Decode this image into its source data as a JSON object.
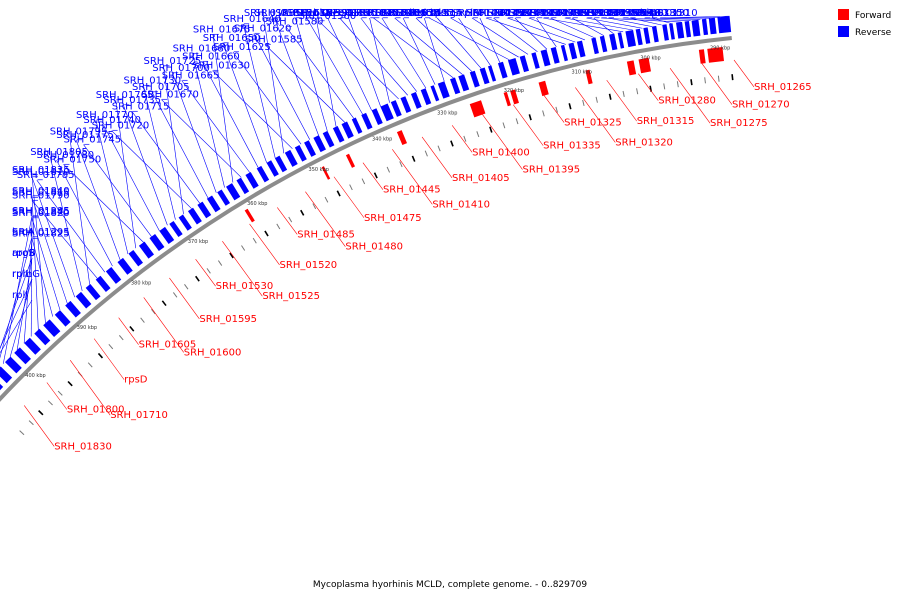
{
  "caption": "Mycoplasma hyorhinis MCLD, complete genome. - 0..829709",
  "legend": [
    {
      "label": "Forward",
      "color": "#ff0000"
    },
    {
      "label": "Reverse",
      "color": "#0000ff"
    }
  ],
  "ticks": [
    "290 kbp",
    "300 kbp",
    "310 kbp",
    "320 kbp",
    "330 kbp",
    "340 kbp",
    "350 kbp",
    "360 kbp",
    "370 kbp",
    "380 kbp",
    "390 kbp",
    "400 kbp"
  ],
  "reverse_labels": [
    "aspS",
    "hisS",
    "SRH_01310",
    "SRH_01330",
    "SRH_01340",
    "SRH_01345",
    "SRH_01350",
    "SRH_01360",
    "SRH_01365",
    "SRH_01380",
    "SRH_01355",
    "SRH_01370",
    "SRH_01385",
    "SRH_01390",
    "SRH_01415",
    "SRH_01420",
    "SRH_01430",
    "SRH_01435",
    "SRH_01440",
    "SRH_01450",
    "SRH_01455",
    "SRH_01460",
    "rpsI",
    "ileS",
    "rplM",
    "ksgA",
    "gidB",
    "SRH_01495",
    "SRH_01505",
    "SRH_01510",
    "SRH_01515",
    "SRH_01535",
    "SRH_01540",
    "SRH_01545",
    "SRH_01555",
    "SRH_01560",
    "SRH_01565",
    "recR",
    "cbiO",
    "SRH_01570",
    "SRH_01580",
    "SRH_01585",
    "SRH_01590",
    "SRH_01610",
    "SRH_01615",
    "SRH_01620",
    "SRH_01625",
    "SRH_01630",
    "SRH_01635",
    "SRH_01640",
    "SRH_01650",
    "SRH_01660",
    "SRH_01665",
    "SRH_01670",
    "SRH_01675",
    "SRH_01680",
    "SRH_01700",
    "SRH_01705",
    "SRH_01715",
    "SRH_01720",
    "SRH_01725",
    "SRH_01730",
    "SRH_01735",
    "SRH_01740",
    "SRH_01745",
    "SRH_01750",
    "SRH_01765",
    "SRH_01770",
    "SRH_01775",
    "SRH_01780",
    "SRH_01785",
    "SRH_01790",
    "SRH_01795",
    "SRH_01805",
    "SRH_01810",
    "SRH_01815",
    "SRH_01820",
    "SRH_01825",
    "SRH_01835",
    "SRH_01840",
    "SRH_01845",
    "hrcA",
    "argS",
    "rpmG",
    "SRH_01285",
    "SRH_01295",
    "rpoB",
    "rplL",
    "rplJ"
  ],
  "forward_labels": [
    "SRH_01265",
    "SRH_01270",
    "SRH_01275",
    "SRH_01280",
    "SRH_01315",
    "SRH_01320",
    "SRH_01325",
    "SRH_01335",
    "SRH_01395",
    "SRH_01400",
    "SRH_01405",
    "SRH_01410",
    "SRH_01445",
    "SRH_01475",
    "SRH_01480",
    "SRH_01485",
    "SRH_01520",
    "SRH_01525",
    "SRH_01530",
    "SRH_01595",
    "SRH_01600",
    "SRH_01605",
    "rpsD",
    "SRH_01710",
    "SRH_01800",
    "SRH_01830"
  ]
}
